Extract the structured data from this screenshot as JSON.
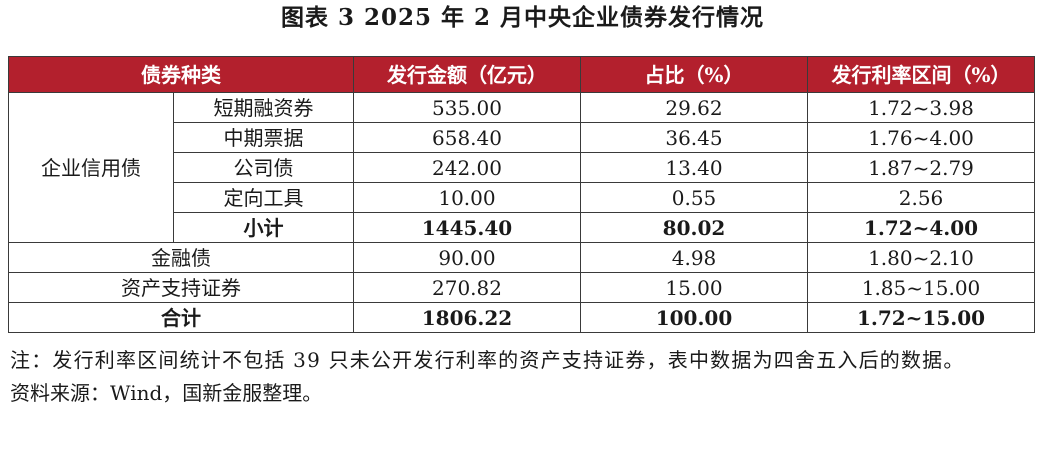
{
  "title": "图表 3  2025 年 2 月中央企业债券发行情况",
  "table": {
    "headers": [
      "债券种类",
      "发行金额（亿元）",
      "占比（%）",
      "发行利率区间（%）"
    ],
    "group_label": "企业信用债",
    "group_rows": [
      {
        "name": "短期融资券",
        "amount": "535.00",
        "share": "29.62",
        "rate": "1.72~3.98"
      },
      {
        "name": "中期票据",
        "amount": "658.40",
        "share": "36.45",
        "rate": "1.76~4.00"
      },
      {
        "name": "公司债",
        "amount": "242.00",
        "share": "13.40",
        "rate": "1.87~2.79"
      },
      {
        "name": "定向工具",
        "amount": "10.00",
        "share": "0.55",
        "rate": "2.56"
      }
    ],
    "subtotal": {
      "name": "小计",
      "amount": "1445.40",
      "share": "80.02",
      "rate": "1.72~4.00"
    },
    "other_rows": [
      {
        "name": "金融债",
        "amount": "90.00",
        "share": "4.98",
        "rate": "1.80~2.10"
      },
      {
        "name": "资产支持证券",
        "amount": "270.82",
        "share": "15.00",
        "rate": "1.85~15.00"
      }
    ],
    "total": {
      "name": "合计",
      "amount": "1806.22",
      "share": "100.00",
      "rate": "1.72~15.00"
    }
  },
  "notes": {
    "note": "注：发行利率区间统计不包括 39 只未公开发行利率的资产支持证券，表中数据为四舍五入后的数据。",
    "source": "资料来源：Wind，国新金服整理。"
  },
  "colors": {
    "header_bg": "#b3202d",
    "header_text": "#ffffff"
  }
}
